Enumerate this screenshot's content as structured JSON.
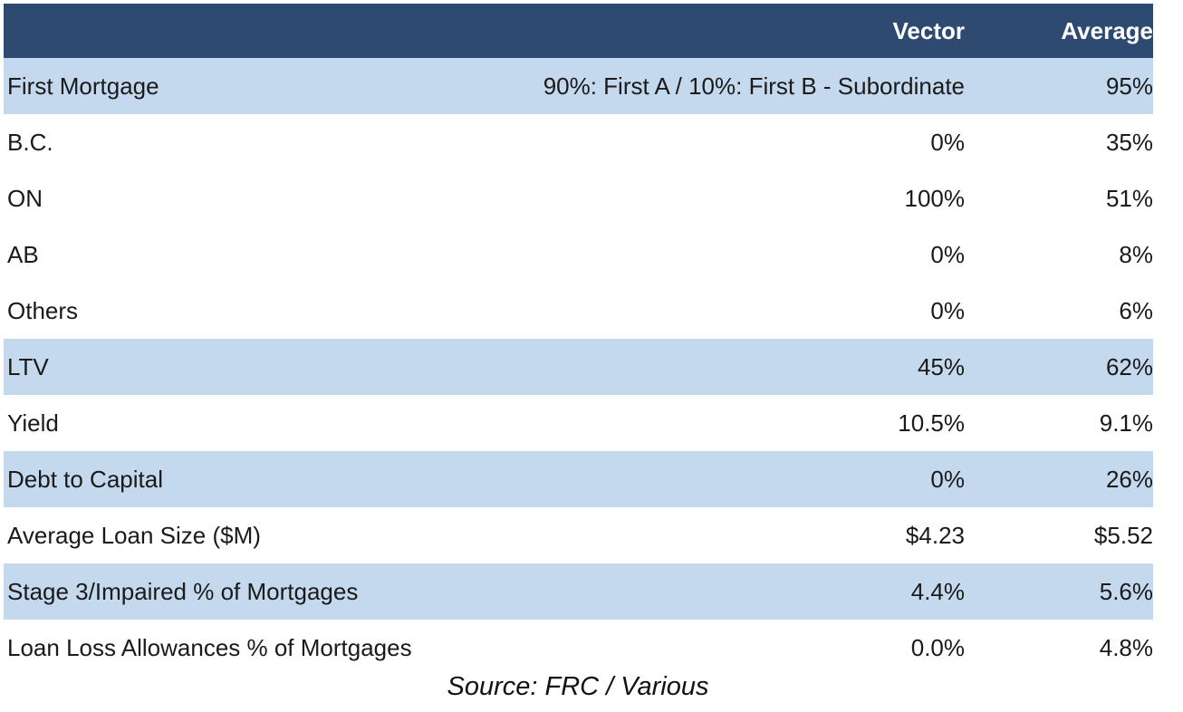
{
  "header": {
    "label": "",
    "vector": "Vector",
    "average": "Average"
  },
  "rows": [
    {
      "label": "First Mortgage",
      "vector": "90%: First A / 10%: First B - Subordinate",
      "average": "95%",
      "shaded": true
    },
    {
      "label": "B.C.",
      "vector": "0%",
      "average": "35%",
      "shaded": false
    },
    {
      "label": "ON",
      "vector": "100%",
      "average": "51%",
      "shaded": false
    },
    {
      "label": "AB",
      "vector": "0%",
      "average": "8%",
      "shaded": false
    },
    {
      "label": "Others",
      "vector": "0%",
      "average": "6%",
      "shaded": false
    },
    {
      "label": "LTV",
      "vector": "45%",
      "average": "62%",
      "shaded": true
    },
    {
      "label": "Yield",
      "vector": "10.5%",
      "average": "9.1%",
      "shaded": false
    },
    {
      "label": "Debt to Capital",
      "vector": "0%",
      "average": "26%",
      "shaded": true
    },
    {
      "label": "Average Loan Size ($M)",
      "vector": "$4.23",
      "average": "$5.52",
      "shaded": false
    },
    {
      "label": "Stage 3/Impaired % of Mortgages",
      "vector": "4.4%",
      "average": "5.6%",
      "shaded": true
    },
    {
      "label": "Loan Loss Allowances % of Mortgages",
      "vector": "0.0%",
      "average": "4.8%",
      "shaded": false
    }
  ],
  "source": "Source: FRC / Various",
  "colors": {
    "header_bg": "#2e4a70",
    "shaded_row_bg": "#c5d9ee"
  }
}
